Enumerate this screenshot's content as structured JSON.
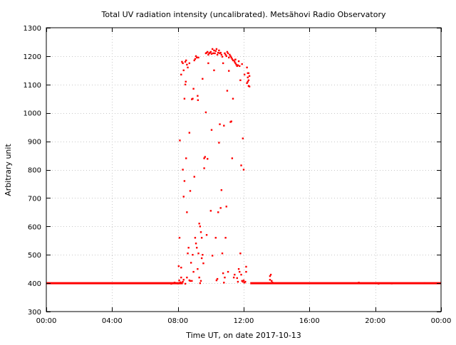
{
  "chart_data": {
    "type": "scatter",
    "title": "Total UV radiation intensity (uncalibrated). Metsähovi Radio Observatory",
    "xlabel": "Time UT, on date 2017-10-13",
    "ylabel": "Arbitrary unit",
    "xlim": [
      0,
      24
    ],
    "ylim": [
      300,
      1300
    ],
    "x_ticks": [
      0,
      4,
      8,
      12,
      16,
      20,
      24
    ],
    "x_tick_labels": [
      "00:00",
      "04:00",
      "08:00",
      "12:00",
      "16:00",
      "20:00",
      "00:00"
    ],
    "y_ticks": [
      300,
      400,
      500,
      600,
      700,
      800,
      900,
      1000,
      1100,
      1200,
      1300
    ],
    "y_tick_labels": [
      "300",
      "400",
      "500",
      "600",
      "700",
      "800",
      "900",
      "1000",
      "1100",
      "1200",
      "1300"
    ],
    "grid": true,
    "legend": "none",
    "marker_color": "#ff0000",
    "baseline": {
      "value": 400,
      "x_ranges": [
        [
          0,
          8.3
        ],
        [
          12.4,
          24
        ]
      ]
    },
    "points": [
      [
        7.6,
        398
      ],
      [
        7.8,
        402
      ],
      [
        8.0,
        399
      ],
      [
        8.15,
        403
      ],
      [
        8.25,
        401
      ],
      [
        8.08,
        410
      ],
      [
        8.2,
        420
      ],
      [
        8.3,
        405
      ],
      [
        8.35,
        412
      ],
      [
        8.45,
        398
      ],
      [
        8.05,
        460
      ],
      [
        8.1,
        560
      ],
      [
        8.12,
        903
      ],
      [
        8.2,
        1135
      ],
      [
        8.25,
        1180
      ],
      [
        8.3,
        1175
      ],
      [
        8.35,
        1150
      ],
      [
        8.4,
        1050
      ],
      [
        8.45,
        1100
      ],
      [
        8.48,
        1110
      ],
      [
        8.3,
        800
      ],
      [
        8.4,
        760
      ],
      [
        8.35,
        705
      ],
      [
        8.5,
        840
      ],
      [
        8.55,
        650
      ],
      [
        8.2,
        455
      ],
      [
        8.55,
        420
      ],
      [
        8.6,
        505
      ],
      [
        8.65,
        525
      ],
      [
        8.7,
        410
      ],
      [
        8.75,
        408
      ],
      [
        8.8,
        472
      ],
      [
        8.85,
        408
      ],
      [
        8.9,
        500
      ],
      [
        8.95,
        440
      ],
      [
        8.45,
        1180
      ],
      [
        8.5,
        1185
      ],
      [
        8.55,
        1170
      ],
      [
        8.6,
        1160
      ],
      [
        8.7,
        930
      ],
      [
        8.75,
        725
      ],
      [
        8.85,
        1048
      ],
      [
        8.9,
        1050
      ],
      [
        8.95,
        1085
      ],
      [
        9.0,
        775
      ],
      [
        9.0,
        1185
      ],
      [
        9.05,
        1190
      ],
      [
        9.1,
        1200
      ],
      [
        9.15,
        1195
      ],
      [
        9.2,
        1060
      ],
      [
        9.22,
        1045
      ],
      [
        9.3,
        610
      ],
      [
        9.35,
        600
      ],
      [
        9.4,
        580
      ],
      [
        9.45,
        560
      ],
      [
        9.05,
        560
      ],
      [
        9.1,
        540
      ],
      [
        9.15,
        525
      ],
      [
        9.2,
        450
      ],
      [
        9.25,
        505
      ],
      [
        9.3,
        420
      ],
      [
        9.35,
        400
      ],
      [
        9.4,
        408
      ],
      [
        9.45,
        488
      ],
      [
        9.5,
        1120
      ],
      [
        9.5,
        500
      ],
      [
        9.55,
        470
      ],
      [
        9.6,
        840
      ],
      [
        9.65,
        845
      ],
      [
        9.7,
        1210
      ],
      [
        9.75,
        1212
      ],
      [
        9.8,
        1215
      ],
      [
        9.85,
        1205
      ],
      [
        9.9,
        1210
      ],
      [
        9.95,
        1212
      ],
      [
        9.6,
        805
      ],
      [
        9.7,
        1002
      ],
      [
        9.75,
        570
      ],
      [
        9.8,
        838
      ],
      [
        9.85,
        1175
      ],
      [
        10.0,
        1215
      ],
      [
        10.05,
        1208
      ],
      [
        10.1,
        1225
      ],
      [
        10.15,
        1210
      ],
      [
        10.2,
        1220
      ],
      [
        10.0,
        655
      ],
      [
        10.05,
        940
      ],
      [
        10.1,
        497
      ],
      [
        10.2,
        1150
      ],
      [
        10.25,
        1210
      ],
      [
        10.3,
        1218
      ],
      [
        10.35,
        1225
      ],
      [
        10.4,
        1205
      ],
      [
        10.45,
        1212
      ],
      [
        10.5,
        1220
      ],
      [
        10.3,
        560
      ],
      [
        10.35,
        410
      ],
      [
        10.4,
        415
      ],
      [
        10.45,
        650
      ],
      [
        10.5,
        895
      ],
      [
        10.55,
        960
      ],
      [
        10.6,
        665
      ],
      [
        10.65,
        728
      ],
      [
        10.7,
        1198
      ],
      [
        10.75,
        1175
      ],
      [
        10.55,
        1210
      ],
      [
        10.6,
        1212
      ],
      [
        10.65,
        1205
      ],
      [
        10.7,
        505
      ],
      [
        10.75,
        435
      ],
      [
        10.8,
        955
      ],
      [
        10.85,
        1210
      ],
      [
        10.9,
        1205
      ],
      [
        10.95,
        1200
      ],
      [
        11.0,
        1215
      ],
      [
        10.8,
        402
      ],
      [
        10.85,
        420
      ],
      [
        10.9,
        560
      ],
      [
        10.95,
        670
      ],
      [
        11.0,
        1078
      ],
      [
        11.05,
        440
      ],
      [
        11.1,
        1148
      ],
      [
        11.15,
        1205
      ],
      [
        11.2,
        1200
      ],
      [
        11.25,
        1195
      ],
      [
        11.05,
        1210
      ],
      [
        11.1,
        1195
      ],
      [
        11.2,
        968
      ],
      [
        11.25,
        970
      ],
      [
        11.3,
        840
      ],
      [
        11.35,
        1050
      ],
      [
        11.4,
        1185
      ],
      [
        11.45,
        1180
      ],
      [
        11.5,
        1175
      ],
      [
        11.55,
        1170
      ],
      [
        11.3,
        1190
      ],
      [
        11.35,
        1185
      ],
      [
        11.4,
        420
      ],
      [
        11.45,
        430
      ],
      [
        11.5,
        1188
      ],
      [
        11.6,
        1165
      ],
      [
        11.65,
        1168
      ],
      [
        11.7,
        450
      ],
      [
        11.75,
        440
      ],
      [
        11.8,
        1115
      ],
      [
        11.6,
        418
      ],
      [
        11.65,
        405
      ],
      [
        11.7,
        1182
      ],
      [
        11.75,
        1165
      ],
      [
        11.8,
        505
      ],
      [
        11.85,
        815
      ],
      [
        11.9,
        1172
      ],
      [
        11.95,
        910
      ],
      [
        12.0,
        800
      ],
      [
        12.05,
        1135
      ],
      [
        11.85,
        430
      ],
      [
        11.9,
        408
      ],
      [
        11.95,
        405
      ],
      [
        12.0,
        410
      ],
      [
        12.05,
        402
      ],
      [
        12.1,
        405
      ],
      [
        12.15,
        458
      ],
      [
        12.2,
        1160
      ],
      [
        12.25,
        1125
      ],
      [
        12.3,
        1115
      ],
      [
        12.15,
        440
      ],
      [
        12.2,
        1105
      ],
      [
        12.25,
        1110
      ],
      [
        12.3,
        1140
      ],
      [
        12.35,
        1130
      ],
      [
        12.35,
        1093
      ],
      [
        12.3,
        1095
      ],
      [
        12.25,
        1140
      ],
      [
        8.7,
        1175
      ],
      [
        9.25,
        1195
      ],
      [
        13.6,
        425
      ],
      [
        13.65,
        430
      ],
      [
        13.7,
        408
      ],
      [
        13.75,
        402
      ],
      [
        13.6,
        412
      ],
      [
        19.0,
        402
      ],
      [
        20.2,
        398
      ],
      [
        21.0,
        399
      ],
      [
        23.0,
        400
      ]
    ]
  }
}
